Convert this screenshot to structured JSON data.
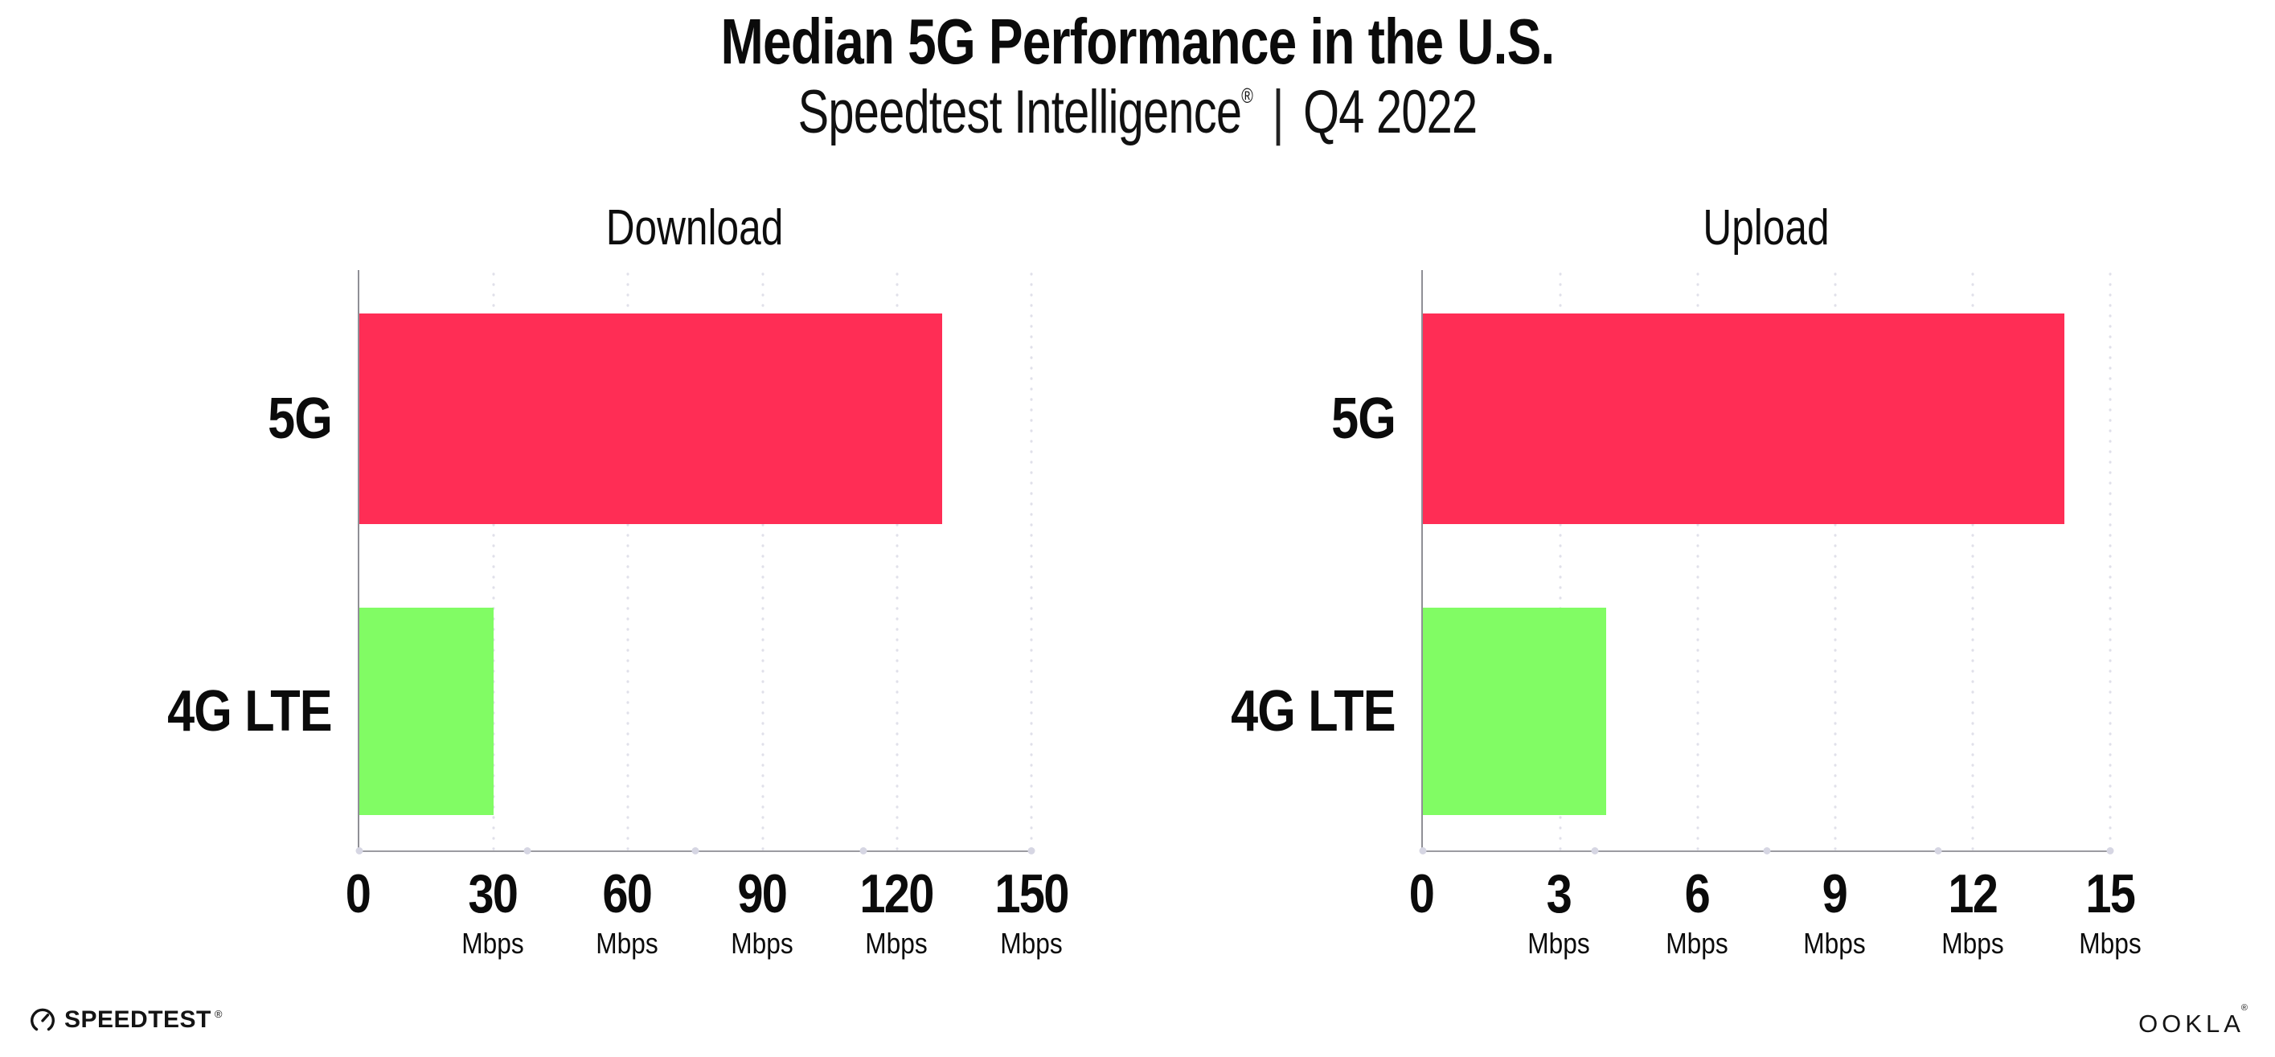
{
  "header": {
    "title": "Median 5G Performance in the U.S.",
    "subtitle_brand": "Speedtest Intelligence",
    "subtitle_reg": "®",
    "subtitle_divider": "|",
    "subtitle_period": "Q4 2022"
  },
  "colors": {
    "bar_5g": "#FF2D55",
    "bar_4g_lte": "#81FC64",
    "gridline": "#E0E0EA",
    "axis": "#9B9BA1",
    "axis_dot": "#D6D6E3",
    "text": "#0B0B0B",
    "background": "#FFFFFF"
  },
  "chart_data": [
    {
      "type": "bar",
      "orientation": "horizontal",
      "title": "Download",
      "categories": [
        "5G",
        "4G LTE"
      ],
      "values": [
        130,
        30
      ],
      "unit": "Mbps",
      "xlim": [
        0,
        150
      ],
      "xticks": [
        0,
        30,
        60,
        90,
        120,
        150
      ],
      "bar_colors": [
        "#FF2D55",
        "#81FC64"
      ],
      "grid": "vertical-dotted",
      "legend": "none"
    },
    {
      "type": "bar",
      "orientation": "horizontal",
      "title": "Upload",
      "categories": [
        "5G",
        "4G LTE"
      ],
      "values": [
        14,
        4
      ],
      "unit": "Mbps",
      "xlim": [
        0,
        15
      ],
      "xticks": [
        0,
        3,
        6,
        9,
        12,
        15
      ],
      "bar_colors": [
        "#FF2D55",
        "#81FC64"
      ],
      "grid": "vertical-dotted",
      "legend": "none"
    }
  ],
  "footer": {
    "speedtest": "SPEEDTEST",
    "speedtest_mark": "®",
    "ookla": "OOKLA",
    "ookla_mark": "®"
  }
}
